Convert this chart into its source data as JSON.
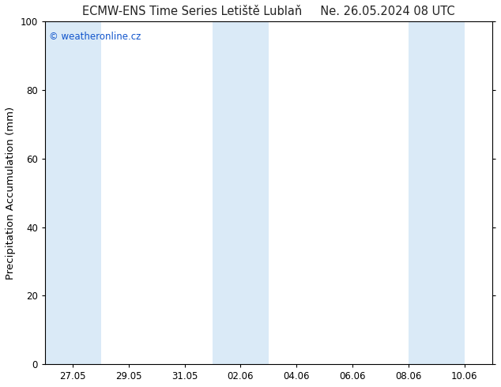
{
  "title": "ECMW-ENS Time Series Letiště Lublaň",
  "title_right": "Ne. 26.05.2024 08 UTC",
  "ylabel": "Precipitation Accumulation (mm)",
  "watermark": "© weatheronline.cz",
  "watermark_color": "#1155cc",
  "ylim": [
    0,
    100
  ],
  "yticks": [
    0,
    20,
    40,
    60,
    80,
    100
  ],
  "x_start": "2024-05-26",
  "x_end": "2024-06-11",
  "xtick_dates": [
    "2024-05-27",
    "2024-05-29",
    "2024-05-31",
    "2024-06-02",
    "2024-06-04",
    "2024-06-06",
    "2024-06-08",
    "2024-06-10"
  ],
  "xtick_labels": [
    "27.05",
    "29.05",
    "31.05",
    "02.06",
    "04.06",
    "06.06",
    "08.06",
    "10.06"
  ],
  "shaded_bands": [
    {
      "start": "2024-05-26",
      "end": "2024-05-28"
    },
    {
      "start": "2024-06-01",
      "end": "2024-06-02"
    },
    {
      "start": "2024-06-02",
      "end": "2024-06-03"
    },
    {
      "start": "2024-06-08",
      "end": "2024-06-09"
    },
    {
      "start": "2024-06-09",
      "end": "2024-06-10"
    }
  ],
  "band_color": "#daeaf7",
  "background_color": "#ffffff",
  "axes_bg_color": "#ffffff",
  "title_fontsize": 10.5,
  "tick_fontsize": 8.5,
  "ylabel_fontsize": 9.5,
  "watermark_fontsize": 8.5
}
